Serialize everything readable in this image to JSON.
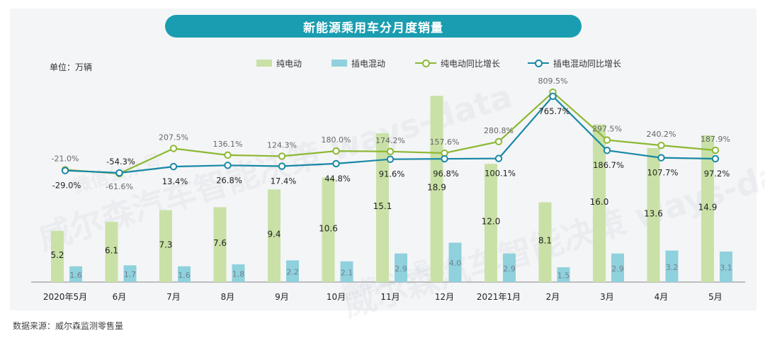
{
  "title": "新能源乘用车分月度销量",
  "unit_label": "单位：万辆",
  "source": "数据来源：威尔森监测零售量",
  "legend": [
    {
      "name": "纯电动",
      "kind": "bar",
      "color": "#c9e1a6"
    },
    {
      "name": "插电混动",
      "kind": "bar",
      "color": "#8fd1dc"
    },
    {
      "name": "纯电动同比增长",
      "kind": "line",
      "color": "#8db832"
    },
    {
      "name": "插电混动同比增长",
      "kind": "line",
      "color": "#1888a5"
    }
  ],
  "watermarks": [
    "威尔森汽车智能决策 ways-data",
    "微信公众号",
    "威尔森汽车智能决策 ways-data",
    "微信公众号"
  ],
  "chart_data": {
    "type": "bar",
    "categories": [
      "2020年5月",
      "6月",
      "7月",
      "8月",
      "9月",
      "10月",
      "11月",
      "12月",
      "2021年1月",
      "2月",
      "3月",
      "4月",
      "5月"
    ],
    "series": [
      {
        "name": "纯电动",
        "type": "bar",
        "axis": "volume",
        "color": "#c9e1a6",
        "values": [
          5.2,
          6.1,
          7.3,
          7.6,
          9.4,
          10.6,
          15.1,
          18.9,
          12.0,
          8.1,
          16.0,
          13.6,
          14.9
        ],
        "labels": [
          "5.2",
          "6.1",
          "7.3",
          "7.6",
          "9.4",
          "10.6",
          "15.1",
          "18.9",
          "12.0",
          "8.1",
          "16.0",
          "13.6",
          "14.9"
        ]
      },
      {
        "name": "插电混动",
        "type": "bar",
        "axis": "volume",
        "color": "#8fd1dc",
        "values": [
          1.6,
          1.7,
          1.6,
          1.8,
          2.2,
          2.1,
          2.9,
          4.0,
          2.9,
          1.5,
          2.9,
          3.2,
          3.1
        ],
        "labels": [
          "1.6",
          "1.7",
          "1.6",
          "1.8",
          "2.2",
          "2.1",
          "2.9",
          "4.0",
          "2.9",
          "1.5",
          "2.9",
          "3.2",
          "3.1"
        ]
      },
      {
        "name": "纯电动同比增长",
        "type": "line",
        "axis": "growth",
        "color": "#8db832",
        "values": [
          -21.0,
          -61.6,
          207.5,
          136.1,
          124.3,
          180.0,
          174.2,
          157.6,
          280.8,
          809.5,
          297.5,
          240.2,
          187.9
        ],
        "labels": [
          "-21.0%",
          "-61.6%",
          "207.5%",
          "136.1%",
          "124.3%",
          "180.0%",
          "174.2%",
          "157.6%",
          "280.8%",
          "809.5%",
          "297.5%",
          "240.2%",
          "187.9%"
        ]
      },
      {
        "name": "插电混动同比增长",
        "type": "line",
        "axis": "growth",
        "color": "#1888a5",
        "values": [
          -29.0,
          -54.3,
          13.4,
          26.8,
          17.4,
          44.8,
          91.6,
          96.8,
          100.1,
          765.7,
          186.7,
          107.7,
          97.2
        ],
        "labels": [
          "-29.0%",
          "-54.3%",
          "13.4%",
          "26.8%",
          "17.4%",
          "44.8%",
          "91.6%",
          "96.8%",
          "100.1%",
          "765.7%",
          "186.7%",
          "107.7%",
          "97.2%"
        ]
      }
    ],
    "xlabel": "",
    "ylabel": "单位：万辆",
    "grid": false,
    "legend_position": "top"
  }
}
